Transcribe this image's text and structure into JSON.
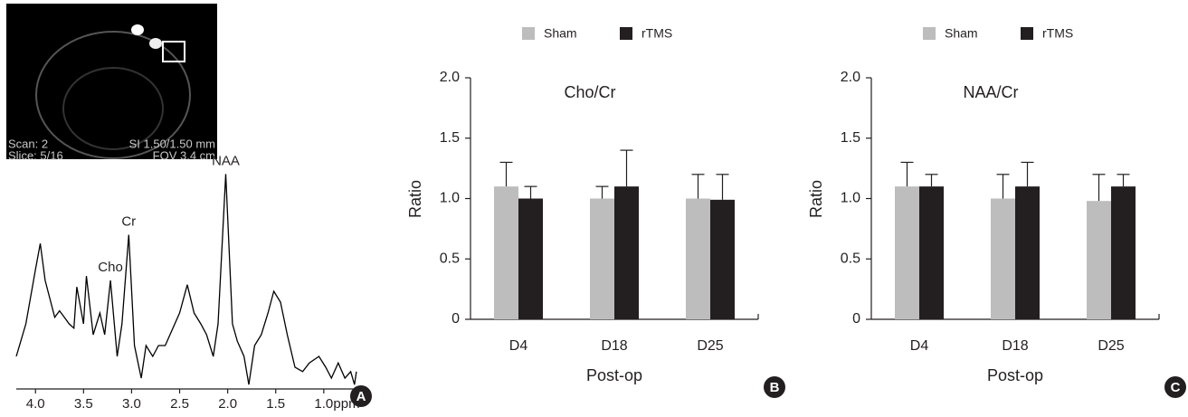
{
  "chart_data": [
    {
      "type": "line",
      "panel_label": "A",
      "image_annotations": [
        "Scan: 2",
        "SI 1.50/1.50 mm",
        "Slice: 5/16",
        "FOV 3.4 cm"
      ],
      "x": [
        4.2,
        4.1,
        4.0,
        3.95,
        3.9,
        3.8,
        3.75,
        3.7,
        3.65,
        3.6,
        3.57,
        3.5,
        3.47,
        3.4,
        3.33,
        3.28,
        3.22,
        3.15,
        3.1,
        3.03,
        2.97,
        2.9,
        2.85,
        2.78,
        2.72,
        2.65,
        2.6,
        2.5,
        2.42,
        2.35,
        2.28,
        2.22,
        2.15,
        2.1,
        2.02,
        1.95,
        1.9,
        1.83,
        1.78,
        1.72,
        1.65,
        1.58,
        1.52,
        1.45,
        1.38,
        1.3,
        1.22,
        1.15,
        1.05,
        0.98,
        0.92,
        0.85,
        0.78,
        0.72,
        0.68,
        0.66
      ],
      "values": [
        0.15,
        0.3,
        0.55,
        0.67,
        0.5,
        0.33,
        0.36,
        0.33,
        0.3,
        0.28,
        0.47,
        0.3,
        0.52,
        0.25,
        0.35,
        0.25,
        0.5,
        0.15,
        0.3,
        0.71,
        0.2,
        0.05,
        0.2,
        0.15,
        0.2,
        0.2,
        0.25,
        0.35,
        0.48,
        0.35,
        0.3,
        0.25,
        0.15,
        0.3,
        0.99,
        0.3,
        0.22,
        0.15,
        0.02,
        0.2,
        0.25,
        0.35,
        0.45,
        0.4,
        0.25,
        0.1,
        0.08,
        0.12,
        0.15,
        0.1,
        0.05,
        0.12,
        0.05,
        0.08,
        0.02,
        0.08
      ],
      "color": "#000000",
      "xlim": [
        4.2,
        0.65
      ],
      "ylim": [
        0,
        1
      ],
      "xticks": [
        {
          "value": 4,
          "label": "4.0"
        },
        3.5,
        {
          "value": 3,
          "label": "3.0"
        },
        2.5,
        {
          "value": 2,
          "label": "2.0"
        },
        1.5,
        {
          "value": 1,
          "label": "1.0"
        }
      ],
      "x_label": "ppm",
      "annotations": [
        {
          "text": "Cho",
          "x": 3.22,
          "y": 0.5
        },
        {
          "text": "Cr",
          "x": 3.03,
          "y": 0.71
        },
        {
          "text": "NAA",
          "x": 2.02,
          "y": 0.99
        }
      ]
    },
    {
      "type": "bar",
      "panel_label": "B",
      "title": "Cho/Cr",
      "y_label": "Ratio",
      "x_label": "Post-op",
      "categories": [
        "D4",
        "D18",
        "D25"
      ],
      "series": [
        {
          "name": "Sham",
          "color": "#bdbdbd",
          "values": [
            1.1,
            1.0,
            1.0
          ],
          "errors": [
            0.2,
            0.1,
            0.2
          ]
        },
        {
          "name": "rTMS",
          "color": "#231f20",
          "values": [
            1.0,
            1.1,
            0.99
          ],
          "errors": [
            0.1,
            0.3,
            0.21
          ]
        }
      ],
      "ylim": [
        0,
        2
      ],
      "yticks": [
        0,
        0.5,
        {
          "value": 1,
          "label": "1.0"
        },
        1.5,
        {
          "value": 2,
          "label": "2.0"
        }
      ],
      "legend": "top"
    },
    {
      "type": "bar",
      "panel_label": "C",
      "title": "NAA/Cr",
      "y_label": "Ratio",
      "x_label": "Post-op",
      "categories": [
        "D4",
        "D18",
        "D25"
      ],
      "series": [
        {
          "name": "Sham",
          "color": "#bdbdbd",
          "values": [
            1.1,
            1.0,
            0.98
          ],
          "errors": [
            0.2,
            0.2,
            0.22
          ]
        },
        {
          "name": "rTMS",
          "color": "#231f20",
          "values": [
            1.1,
            1.1,
            1.1
          ],
          "errors": [
            0.1,
            0.2,
            0.1
          ]
        }
      ],
      "ylim": [
        0,
        2
      ],
      "yticks": [
        0,
        0.5,
        {
          "value": 1,
          "label": "1.0"
        },
        1.5,
        {
          "value": 2,
          "label": "2.0"
        }
      ],
      "legend": "top"
    }
  ]
}
